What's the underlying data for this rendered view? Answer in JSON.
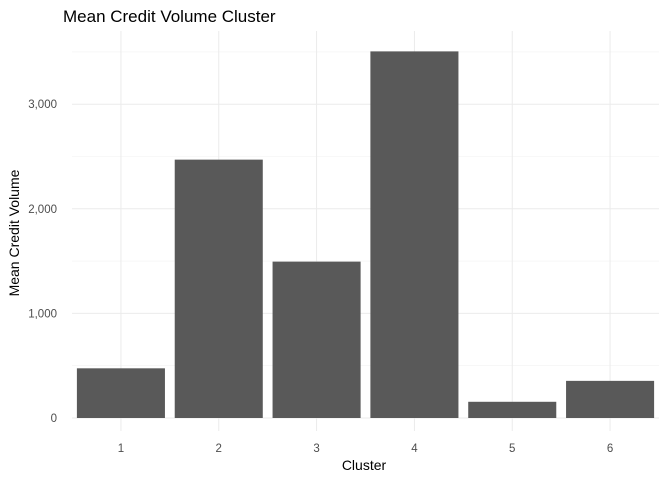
{
  "chart_data": {
    "type": "bar",
    "title": "Mean Credit Volume Cluster",
    "xlabel": "Cluster",
    "ylabel": "Mean Credit Volume",
    "categories": [
      "1",
      "2",
      "3",
      "4",
      "5",
      "6"
    ],
    "values": [
      475,
      2470,
      1495,
      3505,
      155,
      355
    ],
    "ylim": [
      0,
      3680
    ],
    "yticks": [
      0,
      1000,
      2000,
      3000
    ],
    "ytick_labels": [
      "0",
      "1,000",
      "2,000",
      "3,000"
    ],
    "grid": true,
    "bar_color": "#595959"
  }
}
